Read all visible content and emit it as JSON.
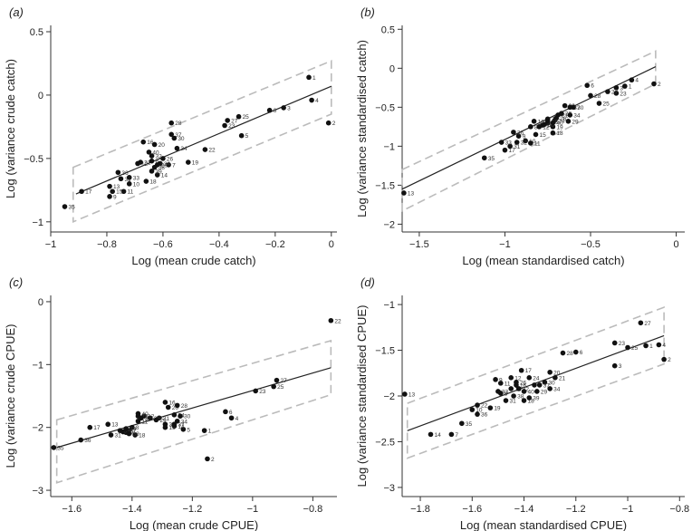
{
  "chart_data": [
    {
      "type": "scatter",
      "panel_label": "(a)",
      "xlabel": "Log (mean crude catch)",
      "ylabel": "Log (variance crude catch)",
      "xlim": [
        -1.0,
        0.02
      ],
      "ylim": [
        -1.08,
        0.55
      ],
      "xticks": [
        -1,
        -0.8,
        -0.6,
        -0.4,
        -0.2,
        0
      ],
      "yticks": [
        -1,
        -0.5,
        0,
        0.5
      ],
      "regression_line": [
        [
          -0.91,
          -0.78
        ],
        [
          0,
          0.07
        ]
      ],
      "band_upper": [
        [
          -0.92,
          -0.57
        ],
        [
          0,
          0.27
        ]
      ],
      "band_lower": [
        [
          -0.92,
          -1.0
        ],
        [
          0,
          -0.15
        ]
      ],
      "points": [
        {
          "label": "1",
          "x": -0.08,
          "y": 0.14
        },
        {
          "label": "2",
          "x": -0.01,
          "y": -0.22
        },
        {
          "label": "3",
          "x": -0.17,
          "y": -0.1
        },
        {
          "label": "4",
          "x": -0.07,
          "y": -0.04
        },
        {
          "label": "5",
          "x": -0.32,
          "y": -0.32
        },
        {
          "label": "6",
          "x": -0.22,
          "y": -0.12
        },
        {
          "label": "7",
          "x": -0.58,
          "y": -0.55
        },
        {
          "label": "8",
          "x": -0.64,
          "y": -0.52
        },
        {
          "label": "9",
          "x": -0.79,
          "y": -0.8
        },
        {
          "label": "10",
          "x": -0.72,
          "y": -0.7
        },
        {
          "label": "11",
          "x": -0.74,
          "y": -0.76
        },
        {
          "label": "12",
          "x": -0.69,
          "y": -0.54
        },
        {
          "label": "13",
          "x": -0.79,
          "y": -0.72
        },
        {
          "label": "14",
          "x": -0.62,
          "y": -0.63
        },
        {
          "label": "15",
          "x": -0.78,
          "y": -0.76
        },
        {
          "label": "16",
          "x": -0.67,
          "y": -0.37
        },
        {
          "label": "17",
          "x": -0.89,
          "y": -0.76
        },
        {
          "label": "18",
          "x": -0.66,
          "y": -0.68
        },
        {
          "label": "19",
          "x": -0.51,
          "y": -0.53
        },
        {
          "label": "20",
          "x": -0.63,
          "y": -0.39
        },
        {
          "label": "21",
          "x": -0.68,
          "y": -0.53
        },
        {
          "label": "22",
          "x": -0.45,
          "y": -0.43
        },
        {
          "label": "23",
          "x": -0.38,
          "y": -0.24
        },
        {
          "label": "24",
          "x": -0.61,
          "y": -0.54
        },
        {
          "label": "25",
          "x": -0.33,
          "y": -0.17
        },
        {
          "label": "26",
          "x": -0.6,
          "y": -0.5
        },
        {
          "label": "27",
          "x": -0.37,
          "y": -0.2
        },
        {
          "label": "28",
          "x": -0.57,
          "y": -0.22
        },
        {
          "label": "29",
          "x": -0.62,
          "y": -0.55
        },
        {
          "label": "30",
          "x": -0.56,
          "y": -0.34
        },
        {
          "label": "31",
          "x": -0.75,
          "y": -0.66
        },
        {
          "label": "32",
          "x": -0.64,
          "y": -0.48
        },
        {
          "label": "33",
          "x": -0.72,
          "y": -0.65
        },
        {
          "label": "34",
          "x": -0.55,
          "y": -0.42
        },
        {
          "label": "35",
          "x": -0.95,
          "y": -0.88
        },
        {
          "label": "36",
          "x": -0.76,
          "y": -0.61
        },
        {
          "label": "37",
          "x": -0.57,
          "y": -0.31
        },
        {
          "label": "38",
          "x": -0.63,
          "y": -0.57
        },
        {
          "label": "39",
          "x": -0.64,
          "y": -0.6
        },
        {
          "label": "40",
          "x": -0.65,
          "y": -0.45
        }
      ]
    },
    {
      "type": "scatter",
      "panel_label": "(b)",
      "xlabel": "Log (mean standardised catch)",
      "ylabel": "Log (variance standardised catch)",
      "xlim": [
        -1.6,
        0.05
      ],
      "ylim": [
        -2.1,
        0.55
      ],
      "xticks": [
        -1.5,
        -1,
        -0.5,
        0
      ],
      "yticks": [
        -2,
        -1.5,
        -1,
        -0.5,
        0,
        0.5
      ],
      "regression_line": [
        [
          -1.6,
          -1.55
        ],
        [
          -0.12,
          0.02
        ]
      ],
      "band_upper": [
        [
          -1.6,
          -1.3
        ],
        [
          -0.12,
          0.22
        ]
      ],
      "band_lower": [
        [
          -1.6,
          -1.83
        ],
        [
          -0.12,
          -0.2
        ]
      ],
      "points": [
        {
          "label": "1",
          "x": -0.3,
          "y": -0.23
        },
        {
          "label": "2",
          "x": -0.13,
          "y": -0.2
        },
        {
          "label": "3",
          "x": -0.35,
          "y": -0.25
        },
        {
          "label": "4",
          "x": -0.26,
          "y": -0.15
        },
        {
          "label": "5",
          "x": -0.75,
          "y": -0.7
        },
        {
          "label": "6",
          "x": -0.52,
          "y": -0.22
        },
        {
          "label": "7",
          "x": -0.75,
          "y": -0.65
        },
        {
          "label": "8",
          "x": -0.85,
          "y": -0.75
        },
        {
          "label": "9",
          "x": -0.92,
          "y": -0.87
        },
        {
          "label": "10",
          "x": -0.88,
          "y": -0.93
        },
        {
          "label": "11",
          "x": -0.85,
          "y": -0.96
        },
        {
          "label": "12",
          "x": -0.8,
          "y": -0.75
        },
        {
          "label": "13",
          "x": -1.59,
          "y": -1.6
        },
        {
          "label": "14",
          "x": -0.78,
          "y": -0.73
        },
        {
          "label": "15",
          "x": -0.82,
          "y": -0.85
        },
        {
          "label": "16",
          "x": -0.83,
          "y": -0.68
        },
        {
          "label": "17",
          "x": -1.0,
          "y": -1.05
        },
        {
          "label": "18",
          "x": -0.72,
          "y": -0.83
        },
        {
          "label": "19",
          "x": -0.72,
          "y": -0.75
        },
        {
          "label": "20",
          "x": -0.65,
          "y": -0.48
        },
        {
          "label": "21",
          "x": -0.69,
          "y": -0.6
        },
        {
          "label": "22",
          "x": -0.67,
          "y": -0.58
        },
        {
          "label": "23",
          "x": -0.35,
          "y": -0.32
        },
        {
          "label": "24",
          "x": -0.71,
          "y": -0.67
        },
        {
          "label": "25",
          "x": -0.45,
          "y": -0.45
        },
        {
          "label": "26",
          "x": -0.7,
          "y": -0.64
        },
        {
          "label": "27",
          "x": -0.4,
          "y": -0.3
        },
        {
          "label": "28",
          "x": -0.5,
          "y": -0.35
        },
        {
          "label": "29",
          "x": -0.63,
          "y": -0.68
        },
        {
          "label": "30",
          "x": -0.6,
          "y": -0.5
        },
        {
          "label": "31",
          "x": -0.97,
          "y": -1.0
        },
        {
          "label": "32",
          "x": -0.93,
          "y": -0.95
        },
        {
          "label": "33",
          "x": -1.02,
          "y": -0.95
        },
        {
          "label": "34",
          "x": -0.62,
          "y": -0.6
        },
        {
          "label": "35",
          "x": -1.12,
          "y": -1.15
        },
        {
          "label": "36",
          "x": -0.95,
          "y": -0.82
        },
        {
          "label": "37",
          "x": -0.62,
          "y": -0.5
        },
        {
          "label": "38",
          "x": -0.75,
          "y": -0.68
        },
        {
          "label": "39",
          "x": -0.77,
          "y": -0.72
        },
        {
          "label": "40",
          "x": -0.72,
          "y": -0.7
        }
      ]
    },
    {
      "type": "scatter",
      "panel_label": "(c)",
      "xlabel": "Log (mean crude CPUE)",
      "ylabel": "Log (variance crude CPUE)",
      "xlim": [
        -1.67,
        -0.72
      ],
      "ylim": [
        -3.1,
        0.1
      ],
      "xticks": [
        -1.6,
        -1.4,
        -1.2,
        -1,
        -0.8
      ],
      "yticks": [
        -3,
        -2,
        -1,
        0
      ],
      "regression_line": [
        [
          -1.65,
          -2.32
        ],
        [
          -0.74,
          -1.05
        ]
      ],
      "band_upper": [
        [
          -1.65,
          -1.88
        ],
        [
          -0.74,
          -0.62
        ]
      ],
      "band_lower": [
        [
          -1.65,
          -2.88
        ],
        [
          -0.74,
          -1.48
        ]
      ],
      "points": [
        {
          "label": "1",
          "x": -1.16,
          "y": -2.05
        },
        {
          "label": "2",
          "x": -1.15,
          "y": -2.5
        },
        {
          "label": "3",
          "x": -1.29,
          "y": -1.95
        },
        {
          "label": "4",
          "x": -1.07,
          "y": -1.85
        },
        {
          "label": "5",
          "x": -1.23,
          "y": -2.03
        },
        {
          "label": "6",
          "x": -1.09,
          "y": -1.75
        },
        {
          "label": "7",
          "x": -1.41,
          "y": -2.05
        },
        {
          "label": "8",
          "x": -1.4,
          "y": -2.0
        },
        {
          "label": "9",
          "x": -1.42,
          "y": -2.08
        },
        {
          "label": "10",
          "x": -1.43,
          "y": -2.07
        },
        {
          "label": "11",
          "x": -1.38,
          "y": -1.9
        },
        {
          "label": "12",
          "x": -1.36,
          "y": -1.82
        },
        {
          "label": "13",
          "x": -1.48,
          "y": -1.95
        },
        {
          "label": "14",
          "x": -1.26,
          "y": -1.98
        },
        {
          "label": "15",
          "x": -1.38,
          "y": -1.82
        },
        {
          "label": "16",
          "x": -1.29,
          "y": -1.6
        },
        {
          "label": "17",
          "x": -1.54,
          "y": -2.0
        },
        {
          "label": "18",
          "x": -1.39,
          "y": -2.12
        },
        {
          "label": "19",
          "x": -1.29,
          "y": -2.0
        },
        {
          "label": "20",
          "x": -1.28,
          "y": -1.68
        },
        {
          "label": "21",
          "x": -1.31,
          "y": -1.85
        },
        {
          "label": "22",
          "x": -0.74,
          "y": -0.3
        },
        {
          "label": "23",
          "x": -0.99,
          "y": -1.42
        },
        {
          "label": "24",
          "x": -1.26,
          "y": -1.8
        },
        {
          "label": "25",
          "x": -0.93,
          "y": -1.35
        },
        {
          "label": "26",
          "x": -1.34,
          "y": -1.85
        },
        {
          "label": "27",
          "x": -0.92,
          "y": -1.25
        },
        {
          "label": "28",
          "x": -1.25,
          "y": -1.65
        },
        {
          "label": "29",
          "x": -1.32,
          "y": -1.88
        },
        {
          "label": "30",
          "x": -1.24,
          "y": -1.82
        },
        {
          "label": "31",
          "x": -1.47,
          "y": -2.12
        },
        {
          "label": "32",
          "x": -1.37,
          "y": -1.85
        },
        {
          "label": "33",
          "x": -1.44,
          "y": -2.05
        },
        {
          "label": "34",
          "x": -1.25,
          "y": -1.9
        },
        {
          "label": "35",
          "x": -1.66,
          "y": -2.32
        },
        {
          "label": "36",
          "x": -1.57,
          "y": -2.2
        },
        {
          "label": "37",
          "x": -1.26,
          "y": -1.95
        },
        {
          "label": "38",
          "x": -1.41,
          "y": -2.1
        },
        {
          "label": "39",
          "x": -1.42,
          "y": -2.02
        },
        {
          "label": "40",
          "x": -1.38,
          "y": -1.78
        }
      ]
    },
    {
      "type": "scatter",
      "panel_label": "(d)",
      "xlabel": "Log (mean standardised CPUE)",
      "ylabel": "Log (variance standardised CPUE)",
      "xlim": [
        -1.87,
        -0.78
      ],
      "ylim": [
        -3.1,
        -0.9
      ],
      "xticks": [
        -1.8,
        -1.6,
        -1.4,
        -1.2,
        -1,
        -0.8
      ],
      "yticks": [
        -3,
        -2.5,
        -2,
        -1.5,
        -1
      ],
      "regression_line": [
        [
          -1.85,
          -2.38
        ],
        [
          -0.86,
          -1.34
        ]
      ],
      "band_upper": [
        [
          -1.85,
          -2.08
        ],
        [
          -0.86,
          -1.03
        ]
      ],
      "band_lower": [
        [
          -1.85,
          -2.68
        ],
        [
          -0.86,
          -1.65
        ]
      ],
      "points": [
        {
          "label": "1",
          "x": -0.93,
          "y": -1.45
        },
        {
          "label": "2",
          "x": -0.86,
          "y": -1.6
        },
        {
          "label": "3",
          "x": -1.05,
          "y": -1.67
        },
        {
          "label": "4",
          "x": -0.88,
          "y": -1.44
        },
        {
          "label": "5",
          "x": -1.36,
          "y": -1.88
        },
        {
          "label": "6",
          "x": -1.2,
          "y": -1.52
        },
        {
          "label": "7",
          "x": -1.68,
          "y": -2.42
        },
        {
          "label": "8",
          "x": -1.49,
          "y": -1.97
        },
        {
          "label": "9",
          "x": -1.51,
          "y": -1.82
        },
        {
          "label": "10",
          "x": -1.6,
          "y": -2.15
        },
        {
          "label": "11",
          "x": -1.49,
          "y": -1.86
        },
        {
          "label": "12",
          "x": -1.45,
          "y": -1.8
        },
        {
          "label": "13",
          "x": -1.86,
          "y": -1.98
        },
        {
          "label": "14",
          "x": -1.76,
          "y": -2.42
        },
        {
          "label": "15",
          "x": -1.45,
          "y": -1.92
        },
        {
          "label": "16",
          "x": -1.43,
          "y": -1.88
        },
        {
          "label": "17",
          "x": -1.41,
          "y": -1.72
        },
        {
          "label": "18",
          "x": -1.4,
          "y": -2.05
        },
        {
          "label": "19",
          "x": -1.53,
          "y": -2.13
        },
        {
          "label": "20",
          "x": -1.3,
          "y": -1.74
        },
        {
          "label": "21",
          "x": -1.28,
          "y": -1.8
        },
        {
          "label": "22",
          "x": -1.58,
          "y": -2.1
        },
        {
          "label": "23",
          "x": -1.05,
          "y": -1.42
        },
        {
          "label": "24",
          "x": -1.38,
          "y": -1.8
        },
        {
          "label": "25",
          "x": -1.0,
          "y": -1.47
        },
        {
          "label": "26",
          "x": -1.43,
          "y": -1.85
        },
        {
          "label": "27",
          "x": -0.95,
          "y": -1.2
        },
        {
          "label": "28",
          "x": -1.25,
          "y": -1.53
        },
        {
          "label": "29",
          "x": -1.35,
          "y": -1.95
        },
        {
          "label": "30",
          "x": -1.32,
          "y": -1.85
        },
        {
          "label": "31",
          "x": -1.47,
          "y": -2.05
        },
        {
          "label": "32",
          "x": -1.42,
          "y": -1.92
        },
        {
          "label": "33",
          "x": -1.5,
          "y": -1.95
        },
        {
          "label": "34",
          "x": -1.3,
          "y": -1.92
        },
        {
          "label": "35",
          "x": -1.64,
          "y": -2.3
        },
        {
          "label": "36",
          "x": -1.58,
          "y": -2.2
        },
        {
          "label": "37",
          "x": -1.34,
          "y": -1.88
        },
        {
          "label": "38",
          "x": -1.44,
          "y": -2.0
        },
        {
          "label": "39",
          "x": -1.38,
          "y": -2.02
        },
        {
          "label": "40",
          "x": -1.4,
          "y": -1.95
        }
      ]
    }
  ]
}
